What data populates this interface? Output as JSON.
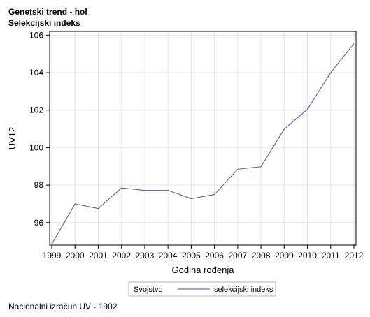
{
  "chart_data": {
    "type": "line",
    "title": "Genetski trend - hol",
    "subtitle": "Selekcijski indeks",
    "xlabel": "Godina rođenja",
    "ylabel": "UV12",
    "categories": [
      "1999",
      "2000",
      "2001",
      "2002",
      "2003",
      "2004",
      "2005",
      "2006",
      "2007",
      "2008",
      "2009",
      "2010",
      "2011",
      "2012"
    ],
    "ylim": [
      94.8,
      106.2
    ],
    "yticks": [
      96,
      98,
      100,
      102,
      104,
      106
    ],
    "grid": true,
    "series": [
      {
        "name": "selekcijski indeks",
        "color": "#4a5a8a",
        "values": [
          94.85,
          97.0,
          96.75,
          97.85,
          97.72,
          97.72,
          97.28,
          97.5,
          98.85,
          98.98,
          100.98,
          102.05,
          104.0,
          105.55
        ]
      }
    ],
    "legend": {
      "title": "Svojstvo",
      "placement": "bottom-center"
    }
  },
  "footnote": "Nacionalni izračun UV - 1902"
}
